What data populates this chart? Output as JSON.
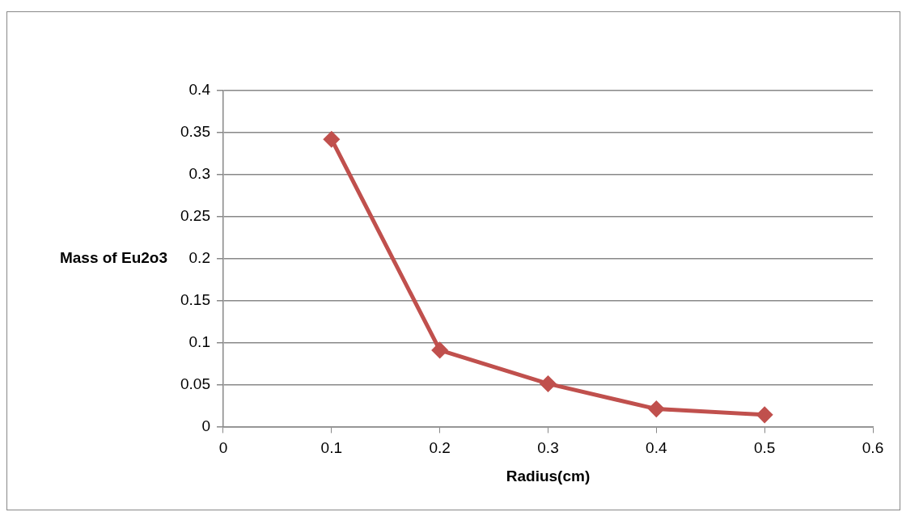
{
  "chart_data": {
    "type": "line",
    "xlabel": "Radius(cm)",
    "ylabel": "Mass of Eu2o3",
    "x": [
      0.1,
      0.2,
      0.3,
      0.4,
      0.5
    ],
    "series": [
      {
        "color": "#c0504d",
        "values": [
          0.342,
          0.091,
          0.051,
          0.021,
          0.014
        ]
      }
    ],
    "xlim": [
      0,
      0.6
    ],
    "xticks": [
      0,
      0.1,
      0.2,
      0.3,
      0.4,
      0.5,
      0.6
    ],
    "ylim": [
      0,
      0.4
    ],
    "yticks": [
      0,
      0.05,
      0.1,
      0.15,
      0.2,
      0.25,
      0.3,
      0.35,
      0.4
    ],
    "grid": "y",
    "marker": "diamond"
  }
}
